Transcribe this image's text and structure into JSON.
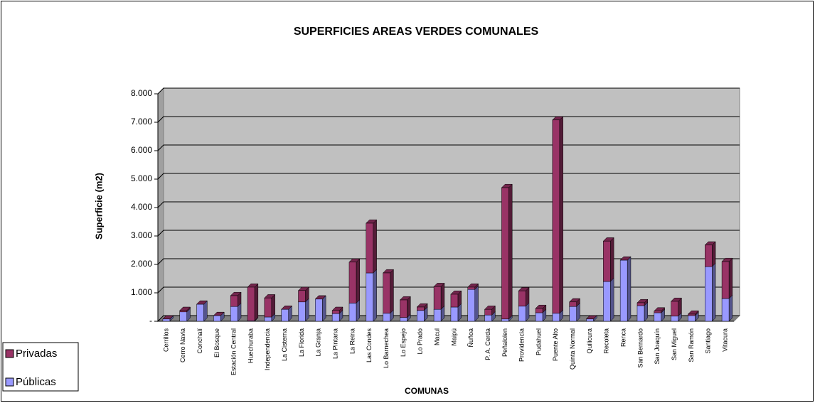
{
  "chart_data": {
    "type": "bar",
    "stacked": true,
    "title": "SUPERFICIES AREAS VERDES COMUNALES",
    "x_label": "COMUNAS",
    "y_label": "Superficie (m2)",
    "categories": [
      "Cerrillos",
      "Cerro Navia",
      "Conchalí",
      "El Bosque",
      "Estación Central",
      "Huechuraba",
      "Independencia",
      "La Cisterna",
      "La Florida",
      "La Granja",
      "La Pintana",
      "La Reina",
      "Las Condes",
      "Lo Barnechea",
      "Lo Espejo",
      "Lo Prado",
      "Macul",
      "Maipú",
      "Ñuñoa",
      "P. A. Cerda",
      "Peñalolen",
      "Providencia",
      "Pudahuel",
      "Puente Alto",
      "Quinta Normal",
      "Quilicura",
      "Recoleta",
      "Renca",
      "San Bernardo",
      "San Joaquín",
      "San Miguel",
      "San Ramón",
      "Santiago",
      "Vitacura"
    ],
    "series": [
      {
        "name": "Públicas",
        "color": "#9999ff",
        "values": [
          80,
          330,
          600,
          200,
          520,
          20,
          150,
          420,
          680,
          780,
          270,
          640,
          1700,
          280,
          130,
          380,
          420,
          500,
          1120,
          220,
          80,
          530,
          300,
          280,
          520,
          80,
          1400,
          2150,
          550,
          300,
          180,
          200,
          1920,
          800
        ]
      },
      {
        "name": "Privadas",
        "color": "#993366",
        "values": [
          0,
          50,
          0,
          0,
          380,
          1180,
          670,
          0,
          400,
          0,
          110,
          1440,
          1750,
          1420,
          620,
          120,
          800,
          450,
          80,
          200,
          4620,
          540,
          150,
          6800,
          160,
          0,
          1420,
          0,
          100,
          60,
          520,
          50,
          760,
          1300
        ]
      }
    ],
    "ylim": [
      0,
      8000
    ],
    "yticks": [
      {
        "value": 0,
        "label": "-"
      },
      {
        "value": 1000,
        "label": "1.000"
      },
      {
        "value": 2000,
        "label": "2.000"
      },
      {
        "value": 3000,
        "label": "3.000"
      },
      {
        "value": 4000,
        "label": "4.000"
      },
      {
        "value": 5000,
        "label": "5.000"
      },
      {
        "value": 6000,
        "label": "6.000"
      },
      {
        "value": 7000,
        "label": "7.000"
      },
      {
        "value": 8000,
        "label": "8.000"
      }
    ],
    "grid": true,
    "legend": "bottom-left",
    "plot_background": "#c0c0c0"
  }
}
